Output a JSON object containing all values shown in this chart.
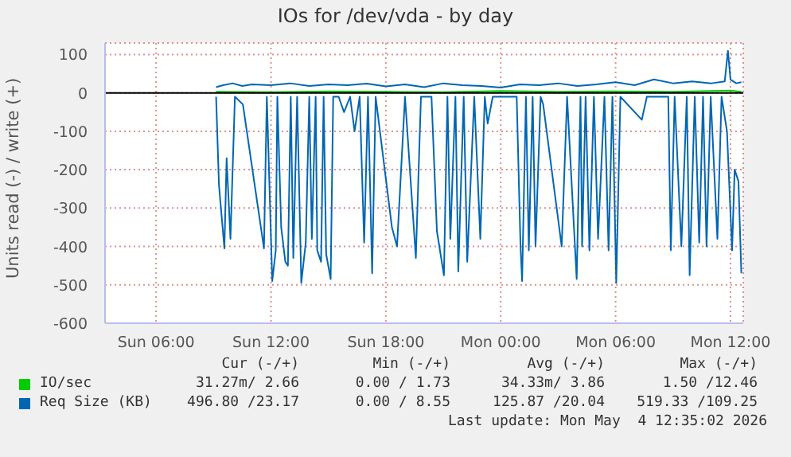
{
  "chart_data": {
    "type": "line",
    "title": "IOs for /dev/vda - by day",
    "ylabel": "Units read (-) / write (+)",
    "xlim": [
      "2026-05-03T03:20",
      "2026-05-04T12:40"
    ],
    "xticks": [
      {
        "value": "2026-05-03T06:00",
        "label": "Sun 06:00"
      },
      {
        "value": "2026-05-03T12:00",
        "label": "Sun 12:00"
      },
      {
        "value": "2026-05-03T18:00",
        "label": "Sun 18:00"
      },
      {
        "value": "2026-05-04T00:00",
        "label": "Mon 00:00"
      },
      {
        "value": "2026-05-04T06:00",
        "label": "Mon 06:00"
      },
      {
        "value": "2026-05-04T12:00",
        "label": "Mon 12:00"
      }
    ],
    "ylim": [
      -600,
      130
    ],
    "yticks": [
      -600,
      -500,
      -400,
      -300,
      -200,
      -100,
      0,
      100
    ],
    "grid": true,
    "legend": "bottom",
    "ref_lines": [
      {
        "axis": "y",
        "value": 0,
        "color": "#000000"
      }
    ],
    "series": [
      {
        "name": "IO/sec",
        "color": "#00cc00",
        "x": [
          "2026-05-03T09:08",
          "2026-05-03T12:00",
          "2026-05-03T15:00",
          "2026-05-03T18:00",
          "2026-05-03T21:00",
          "2026-05-04T00:00",
          "2026-05-04T03:00",
          "2026-05-04T06:00",
          "2026-05-04T09:00",
          "2026-05-04T12:00",
          "2026-05-04T12:34"
        ],
        "values": [
          3,
          2,
          4,
          3,
          2,
          5,
          3,
          4,
          3,
          6,
          3
        ]
      },
      {
        "name": "Req Size (KB)",
        "color": "#0066b3",
        "x": [
          "2026-05-03T09:08",
          "2026-05-03T09:30",
          "2026-05-03T10:00",
          "2026-05-03T10:30",
          "2026-05-03T11:00",
          "2026-05-03T12:00",
          "2026-05-03T13:00",
          "2026-05-03T14:00",
          "2026-05-03T15:00",
          "2026-05-03T16:00",
          "2026-05-03T17:00",
          "2026-05-03T18:00",
          "2026-05-03T19:00",
          "2026-05-03T20:00",
          "2026-05-03T21:00",
          "2026-05-03T22:00",
          "2026-05-03T23:00",
          "2026-05-04T00:00",
          "2026-05-04T01:00",
          "2026-05-04T02:00",
          "2026-05-04T03:00",
          "2026-05-04T04:00",
          "2026-05-04T05:00",
          "2026-05-04T06:00",
          "2026-05-04T07:00",
          "2026-05-04T08:00",
          "2026-05-04T09:00",
          "2026-05-04T10:00",
          "2026-05-04T11:00",
          "2026-05-04T11:42",
          "2026-05-04T11:52",
          "2026-05-04T12:00",
          "2026-05-04T12:18",
          "2026-05-04T12:34"
        ],
        "values": [
          15,
          20,
          25,
          18,
          22,
          20,
          25,
          18,
          22,
          20,
          24,
          17,
          22,
          15,
          25,
          20,
          18,
          14,
          22,
          20,
          25,
          18,
          22,
          28,
          20,
          35,
          25,
          30,
          25,
          30,
          110,
          35,
          25,
          28
        ]
      },
      {
        "color": "#0066b3",
        "x": [
          "2026-05-03T09:08",
          "2026-05-03T09:17",
          "2026-05-03T09:34",
          "2026-05-03T09:41",
          "2026-05-03T09:53",
          "2026-05-03T10:07",
          "2026-05-03T10:32",
          "2026-05-03T11:38",
          "2026-05-03T11:47",
          "2026-05-03T12:04",
          "2026-05-03T12:15",
          "2026-05-03T12:20",
          "2026-05-03T12:32",
          "2026-05-03T12:45",
          "2026-05-03T12:53",
          "2026-05-03T13:02",
          "2026-05-03T13:10",
          "2026-05-03T13:22",
          "2026-05-03T13:35",
          "2026-05-03T13:49",
          "2026-05-03T14:00",
          "2026-05-03T14:08",
          "2026-05-03T14:20",
          "2026-05-03T14:25",
          "2026-05-03T14:37",
          "2026-05-03T14:45",
          "2026-05-03T14:53",
          "2026-05-03T15:07",
          "2026-05-03T15:15",
          "2026-05-03T15:32",
          "2026-05-03T15:49",
          "2026-05-03T16:08",
          "2026-05-03T16:22",
          "2026-05-03T16:38",
          "2026-05-03T16:52",
          "2026-05-03T17:04",
          "2026-05-03T17:17",
          "2026-05-03T17:28",
          "2026-05-03T18:19",
          "2026-05-03T18:35",
          "2026-05-03T19:00",
          "2026-05-03T19:34",
          "2026-05-03T19:50",
          "2026-05-03T20:23",
          "2026-05-03T20:40",
          "2026-05-03T21:02",
          "2026-05-03T21:13",
          "2026-05-03T21:22",
          "2026-05-03T21:38",
          "2026-05-03T21:47",
          "2026-05-03T22:04",
          "2026-05-03T22:15",
          "2026-05-03T22:37",
          "2026-05-03T22:56",
          "2026-05-03T23:10",
          "2026-05-03T23:19",
          "2026-05-03T23:35",
          "2026-05-04T00:50",
          "2026-05-04T01:02",
          "2026-05-04T01:07",
          "2026-05-04T01:19",
          "2026-05-04T01:28",
          "2026-05-04T01:40",
          "2026-05-04T01:49",
          "2026-05-04T02:05",
          "2026-05-04T02:13",
          "2026-05-04T03:11",
          "2026-05-04T03:28",
          "2026-05-04T03:58",
          "2026-05-04T04:10",
          "2026-05-04T04:15",
          "2026-05-04T04:26",
          "2026-05-04T04:38",
          "2026-05-04T04:52",
          "2026-05-04T05:05",
          "2026-05-04T05:25",
          "2026-05-04T05:38",
          "2026-05-04T05:50",
          "2026-05-04T06:02",
          "2026-05-04T06:15",
          "2026-05-04T07:22",
          "2026-05-04T07:38",
          "2026-05-04T08:45",
          "2026-05-04T08:53",
          "2026-05-04T09:05",
          "2026-05-04T09:26",
          "2026-05-04T09:43",
          "2026-05-04T09:52",
          "2026-05-04T10:08",
          "2026-05-04T10:22",
          "2026-05-04T10:34",
          "2026-05-04T10:45",
          "2026-05-04T10:58",
          "2026-05-04T11:19",
          "2026-05-04T11:32",
          "2026-05-04T11:49",
          "2026-05-04T12:05",
          "2026-05-04T12:13",
          "2026-05-04T12:25",
          "2026-05-04T12:34"
        ],
        "values": [
          -10,
          -240,
          -405,
          -170,
          -380,
          -10,
          -30,
          -405,
          -10,
          -490,
          -410,
          -10,
          -350,
          -440,
          -450,
          -10,
          -430,
          -10,
          -495,
          -390,
          -10,
          -380,
          -10,
          -410,
          -440,
          -10,
          -420,
          -485,
          -10,
          -10,
          -50,
          -10,
          -100,
          -10,
          -390,
          -10,
          -470,
          -10,
          -350,
          -400,
          -10,
          -430,
          -10,
          -10,
          -360,
          -475,
          -10,
          -380,
          -10,
          -465,
          -10,
          -440,
          -10,
          -380,
          -10,
          -80,
          -10,
          -10,
          -400,
          -490,
          -10,
          -410,
          -10,
          -400,
          -10,
          -30,
          -400,
          -10,
          -485,
          -10,
          -400,
          -10,
          -410,
          -10,
          -380,
          -10,
          -410,
          -10,
          -495,
          -10,
          -70,
          -10,
          -10,
          -410,
          -10,
          -400,
          -10,
          -475,
          -10,
          -390,
          -10,
          -400,
          -10,
          -380,
          -10,
          -100,
          -410,
          -200,
          -230,
          -470
        ]
      }
    ],
    "annotations": [
      "Cur (-/+)",
      "Min (-/+)",
      "Avg (-/+)",
      "Max (-/+)",
      "31.27m/ 2.66",
      "0.00 / 1.73",
      "34.33m/ 3.86",
      "1.50 /12.46",
      "496.80 /23.17",
      "0.00 / 8.55",
      "125.87 /20.04",
      "519.33 /109.25",
      "Last update: Mon May  4 12:35:02 2026"
    ]
  }
}
